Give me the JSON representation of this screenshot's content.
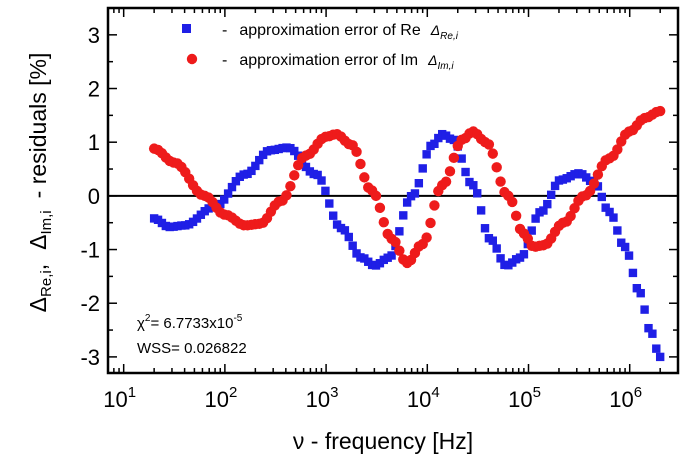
{
  "chart_data": {
    "type": "scatter",
    "xlabel": "ν - frequency   [Hz]",
    "ylabel_main": "- residuals [%]",
    "ylabel_re": "Δ",
    "ylabel_re_sub": "Re,i",
    "ylabel_sep": ",",
    "ylabel_im": "Δ",
    "ylabel_im_sub": "Im,i",
    "x_scale": "log",
    "xlim": [
      7,
      3000000
    ],
    "ylim": [
      -3.3,
      3.5
    ],
    "x_ticks": [
      {
        "value": 10,
        "base": "10",
        "exp": "1"
      },
      {
        "value": 100,
        "base": "10",
        "exp": "2"
      },
      {
        "value": 1000,
        "base": "10",
        "exp": "3"
      },
      {
        "value": 10000,
        "base": "10",
        "exp": "4"
      },
      {
        "value": 100000,
        "base": "10",
        "exp": "5"
      },
      {
        "value": 1000000,
        "base": "10",
        "exp": "6"
      }
    ],
    "y_ticks": [
      -3,
      -2,
      -1,
      0,
      1,
      2,
      3
    ],
    "y_tick_labels": [
      "-3",
      "-2",
      "-1",
      "0",
      "1",
      "2",
      "3"
    ],
    "zero_line": 0,
    "grid": false,
    "legend_position": "top",
    "series": [
      {
        "name": "approximation error of Re",
        "legend_dash": "-",
        "legend_symbol": "Δ",
        "legend_sub": "Re,i",
        "marker": "square",
        "color": "#1f1fe6",
        "x_range": [
          20,
          2000000
        ],
        "anchors_logx": [
          [
            1.3,
            -0.42
          ],
          [
            1.45,
            -0.58
          ],
          [
            1.6,
            -0.55
          ],
          [
            1.9,
            -0.2
          ],
          [
            2.2,
            0.4
          ],
          [
            2.45,
            0.85
          ],
          [
            2.62,
            0.9
          ],
          [
            2.9,
            0.4
          ],
          [
            3.15,
            -0.6
          ],
          [
            3.35,
            -1.15
          ],
          [
            3.48,
            -1.3
          ],
          [
            3.62,
            -1.15
          ],
          [
            3.85,
            0.0
          ],
          [
            4.05,
            0.95
          ],
          [
            4.15,
            1.15
          ],
          [
            4.25,
            1.05
          ],
          [
            4.45,
            0.2
          ],
          [
            4.62,
            -0.8
          ],
          [
            4.78,
            -1.3
          ],
          [
            4.92,
            -1.15
          ],
          [
            5.12,
            -0.3
          ],
          [
            5.32,
            0.3
          ],
          [
            5.5,
            0.42
          ],
          [
            5.65,
            0.25
          ],
          [
            5.8,
            -0.3
          ],
          [
            5.95,
            -0.95
          ],
          [
            6.1,
            -1.8
          ],
          [
            6.2,
            -2.5
          ],
          [
            6.3,
            -3.0
          ]
        ]
      },
      {
        "name": "approximation error of Im",
        "legend_dash": "-",
        "legend_symbol": "Δ",
        "legend_sub": "Im,i",
        "marker": "circle",
        "color": "#ee1b1b",
        "x_range": [
          20,
          2000000
        ],
        "anchors_logx": [
          [
            1.3,
            0.88
          ],
          [
            1.5,
            0.62
          ],
          [
            1.8,
            0.0
          ],
          [
            2.0,
            -0.35
          ],
          [
            2.2,
            -0.55
          ],
          [
            2.35,
            -0.52
          ],
          [
            2.55,
            -0.1
          ],
          [
            2.8,
            0.75
          ],
          [
            3.0,
            1.1
          ],
          [
            3.1,
            1.15
          ],
          [
            3.25,
            0.95
          ],
          [
            3.45,
            0.1
          ],
          [
            3.65,
            -0.8
          ],
          [
            3.8,
            -1.25
          ],
          [
            3.95,
            -0.9
          ],
          [
            4.15,
            0.2
          ],
          [
            4.35,
            1.05
          ],
          [
            4.45,
            1.2
          ],
          [
            4.58,
            1.0
          ],
          [
            4.8,
            0.0
          ],
          [
            4.95,
            -0.7
          ],
          [
            5.05,
            -0.95
          ],
          [
            5.15,
            -0.92
          ],
          [
            5.35,
            -0.5
          ],
          [
            5.55,
            0.0
          ],
          [
            5.8,
            0.7
          ],
          [
            6.0,
            1.2
          ],
          [
            6.15,
            1.45
          ],
          [
            6.3,
            1.58
          ]
        ]
      }
    ],
    "annotations": [
      {
        "text": "χ",
        "sup": "2",
        "text2": "= 6.7733x10",
        "sup2": "-5"
      },
      {
        "text": "WSS= 0.026822"
      }
    ]
  }
}
